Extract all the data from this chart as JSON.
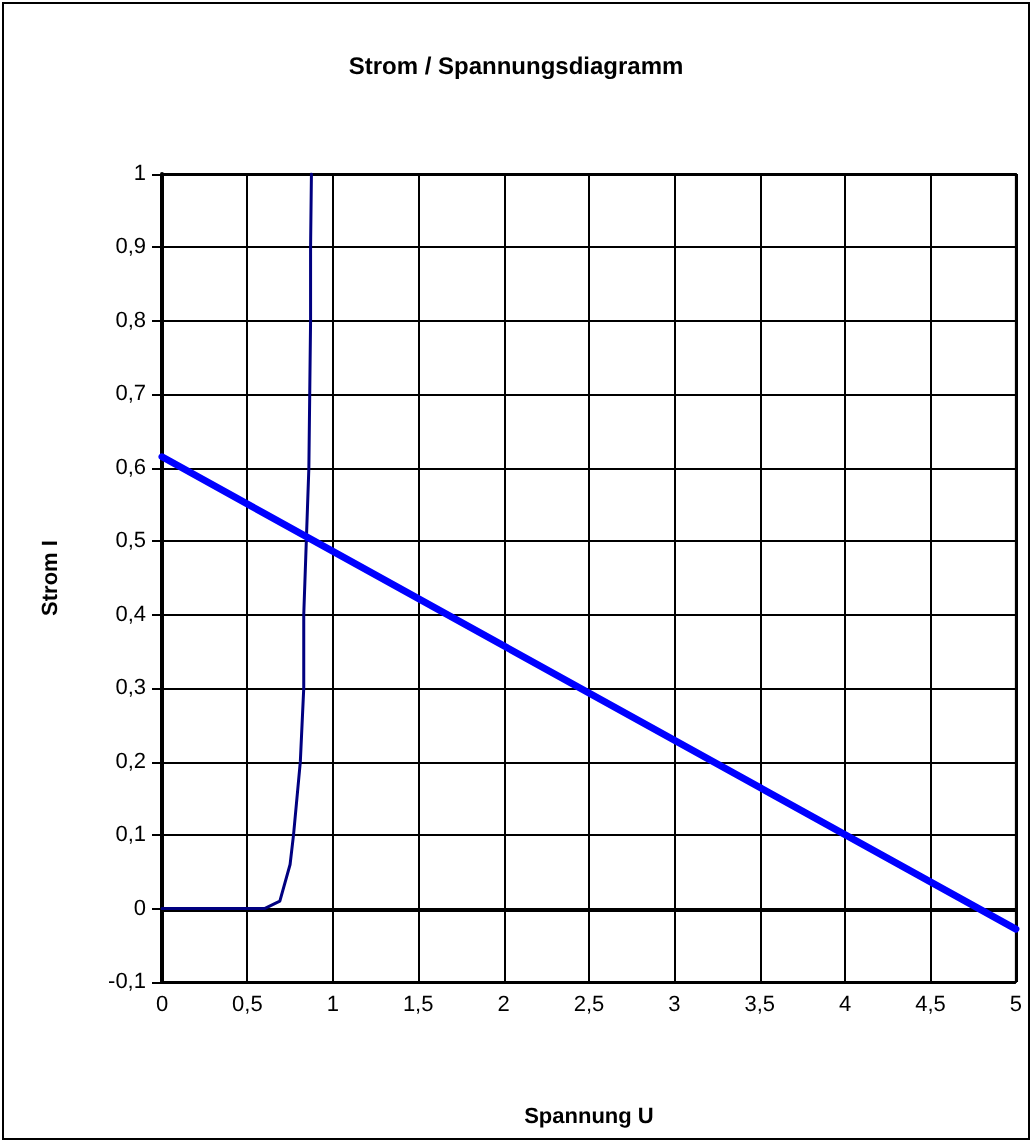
{
  "chart_data": {
    "type": "line",
    "title": "Strom / Spannungsdiagramm",
    "xlabel": "Spannung U",
    "ylabel": "Strom I",
    "series": [
      {
        "color": "#000080",
        "x": [
          0,
          0.5,
          0.6,
          0.69,
          0.75,
          0.77,
          0.81,
          0.83,
          0.83,
          0.845,
          0.86,
          0.865,
          0.87,
          0.87,
          0.875
        ],
        "values": [
          0,
          0,
          0,
          0.01,
          0.06,
          0.1,
          0.2,
          0.3,
          0.4,
          0.5,
          0.6,
          0.7,
          0.8,
          0.9,
          1.0
        ]
      },
      {
        "color": "#0000ff",
        "x": [
          0,
          5
        ],
        "values": [
          0.615,
          -0.028
        ]
      }
    ],
    "xlim": [
      0,
      5
    ],
    "ylim": [
      -0.1,
      1
    ],
    "xticks": [
      0,
      {
        "value": 0.5,
        "label": "0,5"
      },
      1,
      {
        "value": 1.5,
        "label": "1,5"
      },
      2,
      {
        "value": 2.5,
        "label": "2,5"
      },
      3,
      {
        "value": 3.5,
        "label": "3,5"
      },
      4,
      {
        "value": 4.5,
        "label": "4,5"
      },
      5
    ],
    "yticks": [
      {
        "value": -0.1,
        "label": "-0,1"
      },
      0,
      {
        "value": 0.1,
        "label": "0,1"
      },
      {
        "value": 0.2,
        "label": "0,2"
      },
      {
        "value": 0.3,
        "label": "0,3"
      },
      {
        "value": 0.4,
        "label": "0,4"
      },
      {
        "value": 0.5,
        "label": "0,5"
      },
      {
        "value": 0.6,
        "label": "0,6"
      },
      {
        "value": 0.7,
        "label": "0,7"
      },
      {
        "value": 0.8,
        "label": "0,8"
      },
      {
        "value": 0.9,
        "label": "0,9"
      },
      1
    ],
    "grid": true,
    "marker": "none",
    "line_style": "solid"
  }
}
